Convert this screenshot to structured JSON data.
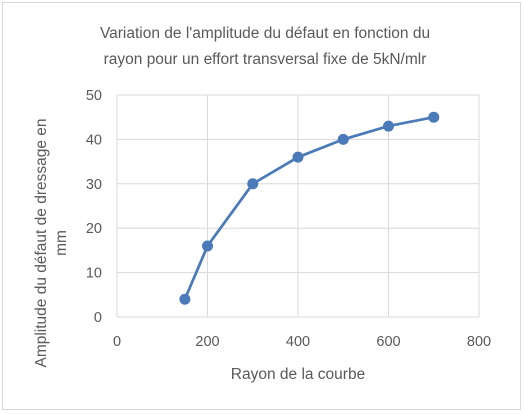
{
  "chart_data": {
    "type": "scatter",
    "title": "Variation de l'amplitude du défaut en fonction du rayon pour un effort transversal fixe de 5kN/mlr",
    "title_lines": [
      "Variation de l'amplitude du défaut en fonction du",
      "rayon pour un effort transversal fixe de 5kN/mlr"
    ],
    "xlabel": "Rayon de la courbe",
    "ylabel": "Amplitude du défaut de dressage en mm",
    "ylabel_lines": [
      "Amplitude du défaut de dressage en",
      "mm"
    ],
    "xlim": [
      0,
      800
    ],
    "ylim": [
      0,
      50
    ],
    "xticks": [
      0,
      200,
      400,
      600,
      800
    ],
    "yticks": [
      0,
      10,
      20,
      30,
      40,
      50
    ],
    "grid": true,
    "legend": "none",
    "color": "#4a7ab8",
    "x": [
      150,
      200,
      300,
      400,
      500,
      600,
      700
    ],
    "y": [
      4,
      16,
      30,
      36,
      40,
      43,
      45
    ]
  }
}
